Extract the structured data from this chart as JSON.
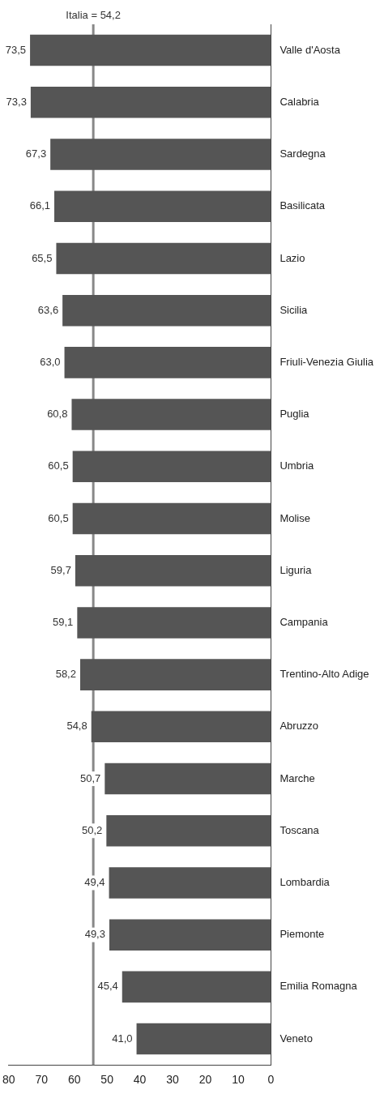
{
  "chart_data": {
    "type": "bar",
    "orientation": "horizontal",
    "categories": [
      "Valle d'Aosta",
      "Calabria",
      "Sardegna",
      "Basilicata",
      "Lazio",
      "Sicilia",
      "Friuli-Venezia Giulia",
      "Puglia",
      "Umbria",
      "Molise",
      "Liguria",
      "Campania",
      "Trentino-Alto Adige",
      "Abruzzo",
      "Marche",
      "Toscana",
      "Lombardia",
      "Piemonte",
      "Emilia Romagna",
      "Veneto"
    ],
    "values": [
      73.5,
      73.3,
      67.3,
      66.1,
      65.5,
      63.6,
      63.0,
      60.8,
      60.5,
      60.5,
      59.7,
      59.1,
      58.2,
      54.8,
      50.7,
      50.2,
      49.4,
      49.3,
      45.4,
      41.0
    ],
    "value_labels": [
      "73,5",
      "73,3",
      "67,3",
      "66,1",
      "65,5",
      "63,6",
      "63,0",
      "60,8",
      "60,5",
      "60,5",
      "59,7",
      "59,1",
      "58,2",
      "54,8",
      "50,7",
      "50,2",
      "49,4",
      "49,3",
      "45,4",
      "41,0"
    ],
    "color": "#555555",
    "xlim": [
      80,
      0
    ],
    "xticks": [
      80,
      70,
      60,
      50,
      40,
      30,
      20,
      10,
      0
    ],
    "grid": false,
    "legend": false,
    "ref_lines": [
      {
        "axis": "x",
        "value": 54.2,
        "label": "Italia = 54,2",
        "color": "#888888"
      }
    ]
  }
}
